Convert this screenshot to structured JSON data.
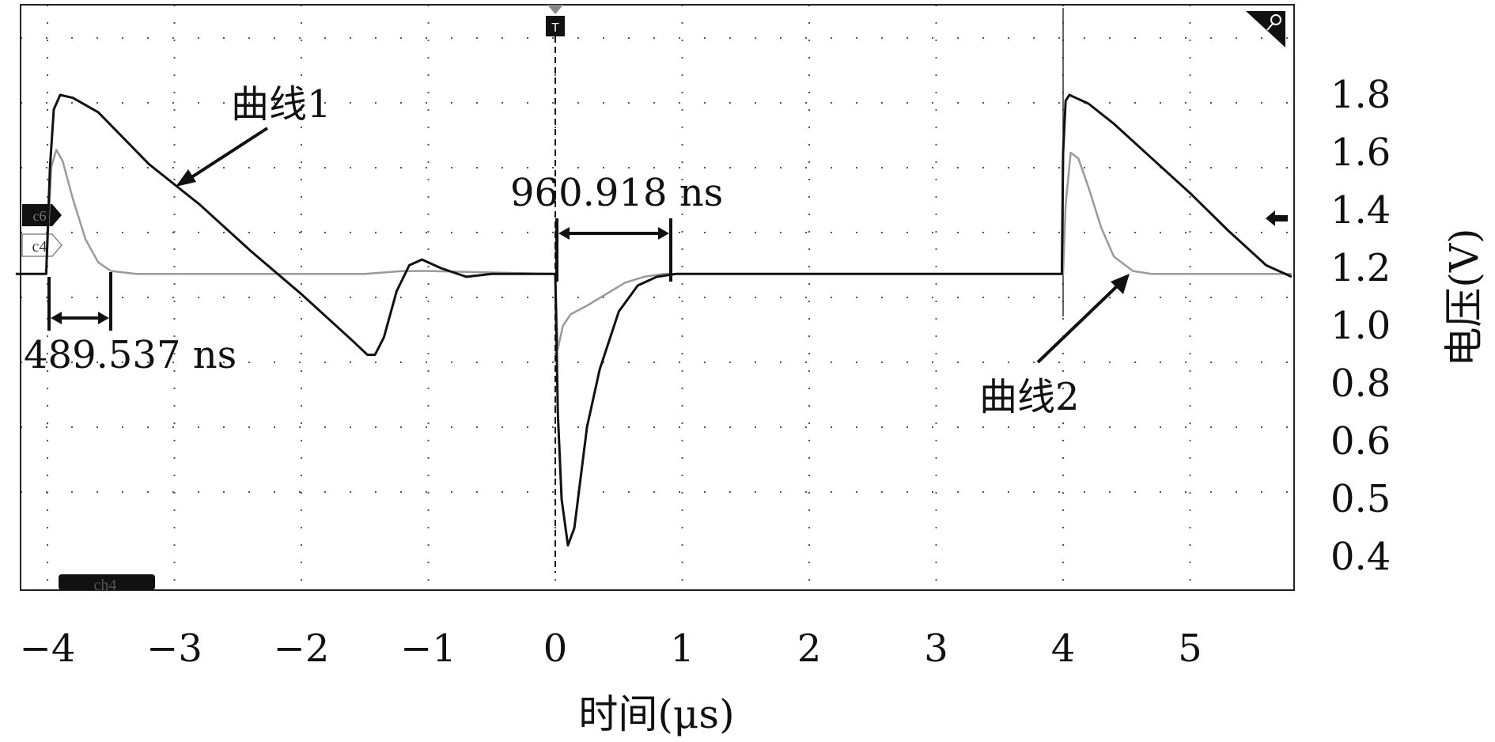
{
  "chart_data": {
    "type": "line",
    "xlabel": "时间(μs)",
    "ylabel": "电压(V)",
    "xlim": [
      -4.25,
      5.8
    ],
    "x_ticks": [
      "−4",
      "−3",
      "−2",
      "−1",
      "0",
      "1",
      "2",
      "3",
      "4",
      "5"
    ],
    "y_ticks": [
      "1.8",
      "1.6",
      "1.4",
      "1.2",
      "1.0",
      "0.8",
      "0.6",
      "0.5",
      "0.4"
    ],
    "grid": true,
    "series": [
      {
        "name": "曲线1",
        "color": "#111111",
        "x": [
          -4.25,
          -4.01,
          -3.98,
          -3.95,
          -3.9,
          -3.8,
          -3.6,
          -3.2,
          -2.8,
          -2.4,
          -2.0,
          -1.6,
          -1.48,
          -1.42,
          -1.35,
          -1.25,
          -1.15,
          -1.05,
          -0.9,
          -0.7,
          -0.5,
          -0.3,
          0.0,
          0.02,
          0.05,
          0.1,
          0.15,
          0.25,
          0.35,
          0.5,
          0.65,
          0.8,
          0.95,
          1.1,
          2.0,
          3.0,
          3.99,
          4.0,
          4.02,
          4.05,
          4.1,
          4.2,
          4.4,
          4.7,
          5.0,
          5.3,
          5.6,
          5.8
        ],
        "y": [
          1.18,
          1.18,
          1.55,
          1.75,
          1.8,
          1.79,
          1.74,
          1.56,
          1.42,
          1.26,
          1.11,
          0.95,
          0.9,
          0.9,
          0.96,
          1.12,
          1.21,
          1.23,
          1.2,
          1.17,
          1.18,
          1.18,
          1.18,
          0.7,
          0.5,
          0.42,
          0.45,
          0.65,
          0.85,
          1.05,
          1.14,
          1.17,
          1.18,
          1.18,
          1.18,
          1.18,
          1.18,
          1.6,
          1.78,
          1.8,
          1.79,
          1.77,
          1.7,
          1.58,
          1.46,
          1.33,
          1.21,
          1.17
        ]
      },
      {
        "name": "曲线2",
        "color": "#9a9a9a",
        "x": [
          -4.25,
          -4.01,
          -3.97,
          -3.93,
          -3.88,
          -3.8,
          -3.7,
          -3.6,
          -3.5,
          -3.3,
          -1.5,
          -1.2,
          -1.0,
          0.0,
          0.02,
          0.06,
          0.12,
          0.25,
          0.4,
          0.55,
          0.7,
          0.85,
          1.0,
          4.0,
          4.02,
          4.06,
          4.12,
          4.2,
          4.3,
          4.4,
          4.55,
          4.7,
          5.8
        ],
        "y": [
          1.18,
          1.18,
          1.55,
          1.61,
          1.57,
          1.44,
          1.3,
          1.22,
          1.19,
          1.18,
          1.18,
          1.19,
          1.19,
          1.18,
          0.92,
          1.0,
          1.04,
          1.07,
          1.11,
          1.15,
          1.17,
          1.18,
          1.18,
          1.18,
          1.42,
          1.6,
          1.58,
          1.48,
          1.34,
          1.24,
          1.19,
          1.18,
          1.18
        ]
      }
    ],
    "annotations": {
      "curve1_label": "曲线1",
      "curve2_label": "曲线2",
      "measure_left": "489.537 ns",
      "measure_mid": "960.918 ns",
      "ch_c6": "c6",
      "ch_c4": "c4",
      "ch_ch4": "ch4",
      "trigger": "T"
    }
  }
}
